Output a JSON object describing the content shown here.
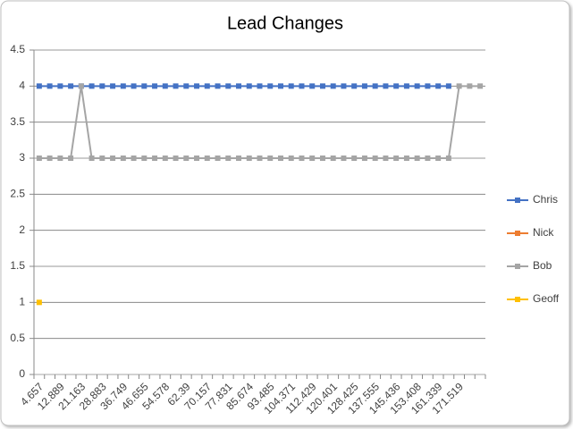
{
  "chart_data": {
    "type": "line",
    "title": "Lead Changes",
    "categories": [
      4.657,
      null,
      12.889,
      null,
      21.163,
      null,
      28.883,
      null,
      36.749,
      null,
      46.655,
      null,
      54.578,
      null,
      62.39,
      null,
      70.157,
      null,
      77.831,
      null,
      85.674,
      null,
      93.485,
      null,
      104.371,
      null,
      112.429,
      null,
      120.401,
      null,
      128.425,
      null,
      137.555,
      null,
      145.436,
      null,
      153.408,
      null,
      161.339,
      null,
      171.519,
      null,
      null
    ],
    "series": [
      {
        "name": "Chris",
        "color": "#4472c4",
        "values": [
          4,
          4,
          4,
          4,
          4,
          4,
          4,
          4,
          4,
          4,
          4,
          4,
          4,
          4,
          4,
          4,
          4,
          4,
          4,
          4,
          4,
          4,
          4,
          4,
          4,
          4,
          4,
          4,
          4,
          4,
          4,
          4,
          4,
          4,
          4,
          4,
          4,
          4,
          4,
          4,
          null,
          null,
          null
        ]
      },
      {
        "name": "Nick",
        "color": "#ed7d31",
        "values": [
          null,
          null,
          null,
          null,
          null,
          null,
          null,
          null,
          null,
          null,
          null,
          null,
          null,
          null,
          null,
          null,
          null,
          null,
          null,
          null,
          null,
          null,
          null,
          null,
          null,
          null,
          null,
          null,
          null,
          null,
          null,
          null,
          null,
          null,
          null,
          null,
          null,
          null,
          null,
          null,
          null,
          null,
          null
        ]
      },
      {
        "name": "Bob",
        "color": "#a5a5a5",
        "values": [
          3,
          3,
          3,
          3,
          4,
          3,
          3,
          3,
          3,
          3,
          3,
          3,
          3,
          3,
          3,
          3,
          3,
          3,
          3,
          3,
          3,
          3,
          3,
          3,
          3,
          3,
          3,
          3,
          3,
          3,
          3,
          3,
          3,
          3,
          3,
          3,
          3,
          3,
          3,
          3,
          4,
          4,
          4
        ]
      },
      {
        "name": "Geoff",
        "color": "#ffc000",
        "values": [
          1,
          null,
          null,
          null,
          null,
          null,
          null,
          null,
          null,
          null,
          null,
          null,
          null,
          null,
          null,
          null,
          null,
          null,
          null,
          null,
          null,
          null,
          null,
          null,
          null,
          null,
          null,
          null,
          null,
          null,
          null,
          null,
          null,
          null,
          null,
          null,
          null,
          null,
          null,
          null,
          null,
          null,
          null
        ]
      }
    ],
    "ylim": [
      0,
      4.5
    ],
    "yticks": [
      0,
      0.5,
      1,
      1.5,
      2,
      2.5,
      3,
      3.5,
      4,
      4.5
    ],
    "grid": true,
    "legend": "right"
  }
}
